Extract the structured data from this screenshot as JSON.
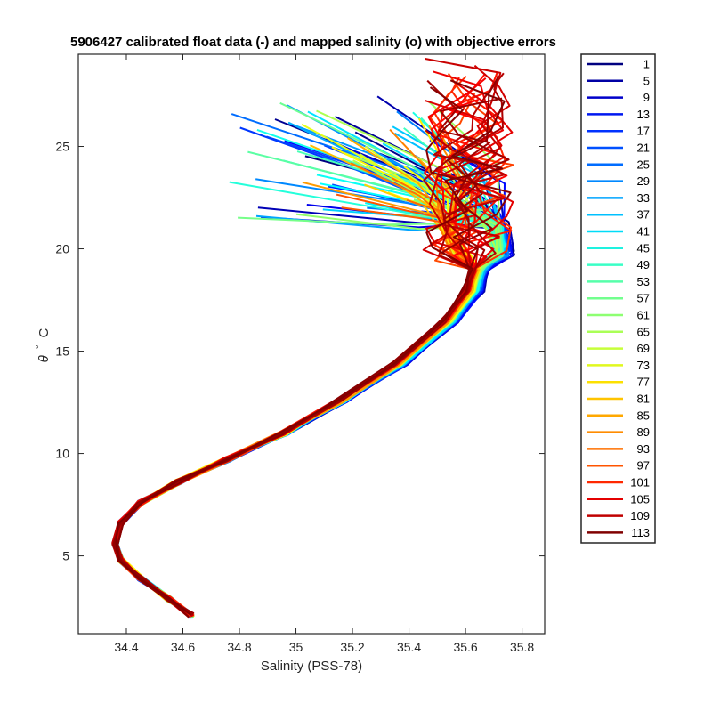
{
  "chart_data": {
    "type": "line",
    "title": "5906427 calibrated float data (-) and mapped salinity (o) with objective errors",
    "xlabel": "Salinity (PSS-78)",
    "ylabel_symbol": "θ",
    "ylabel_degree": "°",
    "ylabel_unit": "C",
    "xlim": [
      34.23,
      35.88
    ],
    "ylim": [
      1.2,
      29.5
    ],
    "xticks": [
      34.4,
      34.6,
      34.8,
      35,
      35.2,
      35.4,
      35.6,
      35.8
    ],
    "xtick_labels": [
      "34.4",
      "34.6",
      "34.8",
      "35",
      "35.2",
      "35.4",
      "35.6",
      "35.8"
    ],
    "yticks": [
      5,
      10,
      15,
      20,
      25
    ],
    "ytick_labels": [
      "5",
      "10",
      "15",
      "20",
      "25"
    ],
    "grid": false,
    "legend_position": "outside-right",
    "colormap": "jet",
    "series": [
      {
        "name": "1",
        "color": "#000080"
      },
      {
        "name": "5",
        "color": "#0000a5"
      },
      {
        "name": "9",
        "color": "#0000ca"
      },
      {
        "name": "13",
        "color": "#0018f0"
      },
      {
        "name": "17",
        "color": "#0032ff"
      },
      {
        "name": "21",
        "color": "#0050ff"
      },
      {
        "name": "25",
        "color": "#006cff"
      },
      {
        "name": "29",
        "color": "#0088ff"
      },
      {
        "name": "33",
        "color": "#00a4ff"
      },
      {
        "name": "37",
        "color": "#00c0ff"
      },
      {
        "name": "41",
        "color": "#00dcf8"
      },
      {
        "name": "45",
        "color": "#1ef2e0"
      },
      {
        "name": "49",
        "color": "#3affc6"
      },
      {
        "name": "53",
        "color": "#56ffaa"
      },
      {
        "name": "57",
        "color": "#72ff8e"
      },
      {
        "name": "61",
        "color": "#8eff72"
      },
      {
        "name": "65",
        "color": "#aaff56"
      },
      {
        "name": "69",
        "color": "#c6ff3a"
      },
      {
        "name": "73",
        "color": "#e0f81e"
      },
      {
        "name": "77",
        "color": "#fce000"
      },
      {
        "name": "81",
        "color": "#ffc400"
      },
      {
        "name": "85",
        "color": "#ffa800"
      },
      {
        "name": "89",
        "color": "#ff8c00"
      },
      {
        "name": "93",
        "color": "#ff7000"
      },
      {
        "name": "97",
        "color": "#ff5400"
      },
      {
        "name": "101",
        "color": "#ff2800"
      },
      {
        "name": "105",
        "color": "#e40000"
      },
      {
        "name": "109",
        "color": "#c00000"
      },
      {
        "name": "113",
        "color": "#800000"
      }
    ],
    "curve_model": {
      "deep_points": [
        [
          34.63,
          2.1
        ],
        [
          34.55,
          2.9
        ],
        [
          34.45,
          3.9
        ],
        [
          34.38,
          4.8
        ],
        [
          34.36,
          5.6
        ],
        [
          34.38,
          6.6
        ],
        [
          34.45,
          7.6
        ],
        [
          34.58,
          8.6
        ],
        [
          34.75,
          9.7
        ],
        [
          34.95,
          11.0
        ],
        [
          35.15,
          12.6
        ],
        [
          35.35,
          14.4
        ],
        [
          35.52,
          16.5
        ],
        [
          35.6,
          18.0
        ],
        [
          35.62,
          19.0
        ]
      ],
      "early_offsets": [
        [
          0.0,
          0.0
        ],
        [
          0.0,
          0.0
        ],
        [
          0.0,
          0.0
        ],
        [
          0.0,
          0.0
        ],
        [
          0.0,
          0.0
        ],
        [
          0.0,
          0.0
        ],
        [
          0.0,
          0.0
        ],
        [
          0.0,
          0.0
        ],
        [
          0.0,
          0.0
        ],
        [
          0.04,
          0.0
        ],
        [
          0.06,
          0.0
        ],
        [
          0.08,
          0.0
        ],
        [
          0.1,
          0.0
        ],
        [
          0.1,
          0.0
        ],
        [
          0.08,
          0.0
        ]
      ],
      "upper_start_salinity": [
        35.62,
        35.6,
        35.58,
        35.6
      ],
      "profile_count": 113
    }
  }
}
